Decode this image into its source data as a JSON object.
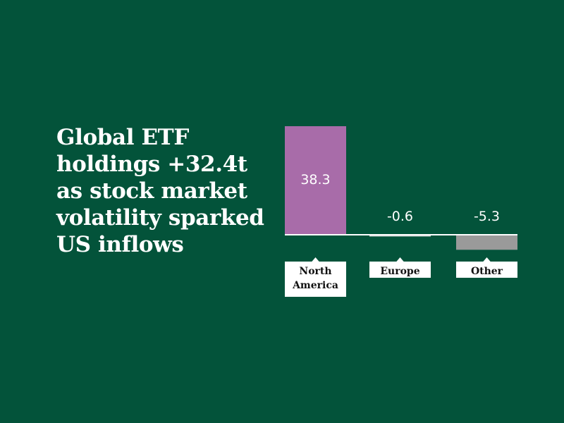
{
  "headline": {
    "lines": [
      "Global ETF",
      "holdings +32.4t",
      "as stock market",
      "volatility sparked",
      "US inflows"
    ]
  },
  "chart_data": {
    "type": "bar",
    "categories": [
      "North America",
      "Europe",
      "Other"
    ],
    "category_label_lines": [
      [
        "North",
        "America"
      ],
      [
        "Europe"
      ],
      [
        "Other"
      ]
    ],
    "values": [
      38.3,
      -0.6,
      -5.3
    ],
    "value_labels": [
      "38.3",
      "-0.6",
      "-5.3"
    ],
    "colors": [
      "#a86ca9",
      "#d9d9d9",
      "#9a9a9a"
    ],
    "ylim": [
      -8,
      40
    ]
  }
}
